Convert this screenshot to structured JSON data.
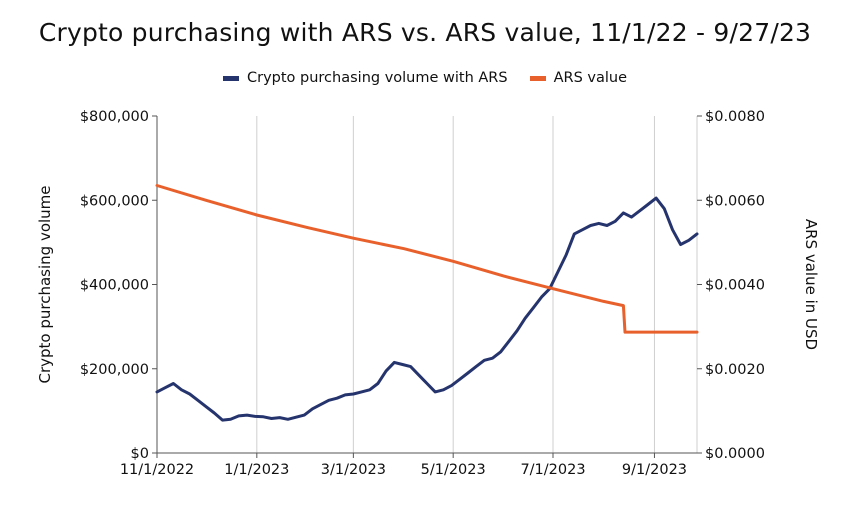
{
  "chart_data": {
    "type": "line",
    "title": "Crypto purchasing with ARS vs. ARS value, 11/1/22 - 9/27/23",
    "ylabel_left": "Crypto purchasing volume",
    "ylabel_right": "ARS value in USD",
    "ylim_left": [
      0,
      800000
    ],
    "ylim_right": [
      0,
      0.008
    ],
    "y_ticks_left": [
      "$0",
      "$200,000",
      "$400,000",
      "$600,000",
      "$800,000"
    ],
    "y_ticks_right": [
      "$0.0000",
      "$0.0020",
      "$0.0040",
      "$0.0060",
      "$0.0080"
    ],
    "x_ticks": [
      "11/1/2022",
      "1/1/2023",
      "3/1/2023",
      "5/1/2023",
      "7/1/2023",
      "9/1/2023"
    ],
    "x_range": [
      "2022-11-01",
      "2023-09-27"
    ],
    "grid": "vertical",
    "legend_position": "top",
    "series": [
      {
        "name": "Crypto purchasing volume with ARS",
        "axis": "left",
        "color": "#26346e",
        "x": [
          "2022-11-01",
          "2022-11-06",
          "2022-11-11",
          "2022-11-16",
          "2022-11-21",
          "2022-11-26",
          "2022-12-01",
          "2022-12-06",
          "2022-12-11",
          "2022-12-16",
          "2022-12-21",
          "2022-12-26",
          "2022-12-31",
          "2023-01-05",
          "2023-01-10",
          "2023-01-15",
          "2023-01-20",
          "2023-01-25",
          "2023-01-30",
          "2023-02-04",
          "2023-02-09",
          "2023-02-14",
          "2023-02-19",
          "2023-02-24",
          "2023-03-01",
          "2023-03-06",
          "2023-03-11",
          "2023-03-16",
          "2023-03-21",
          "2023-03-26",
          "2023-03-31",
          "2023-04-05",
          "2023-04-10",
          "2023-04-15",
          "2023-04-20",
          "2023-04-25",
          "2023-04-30",
          "2023-05-05",
          "2023-05-10",
          "2023-05-15",
          "2023-05-20",
          "2023-05-25",
          "2023-05-30",
          "2023-06-04",
          "2023-06-09",
          "2023-06-14",
          "2023-06-19",
          "2023-06-24",
          "2023-06-29",
          "2023-07-04",
          "2023-07-09",
          "2023-07-14",
          "2023-07-19",
          "2023-07-24",
          "2023-07-29",
          "2023-08-03",
          "2023-08-08",
          "2023-08-13",
          "2023-08-18",
          "2023-08-23",
          "2023-08-28",
          "2023-09-02",
          "2023-09-07",
          "2023-09-12",
          "2023-09-17",
          "2023-09-22",
          "2023-09-27"
        ],
        "y": [
          145000,
          155000,
          165000,
          150000,
          140000,
          125000,
          110000,
          95000,
          78000,
          80000,
          88000,
          90000,
          87000,
          86000,
          82000,
          84000,
          80000,
          85000,
          90000,
          105000,
          115000,
          125000,
          130000,
          138000,
          140000,
          145000,
          150000,
          165000,
          195000,
          215000,
          210000,
          205000,
          185000,
          165000,
          145000,
          150000,
          160000,
          175000,
          190000,
          205000,
          220000,
          225000,
          240000,
          265000,
          290000,
          320000,
          345000,
          370000,
          390000,
          430000,
          470000,
          520000,
          530000,
          540000,
          545000,
          540000,
          550000,
          570000,
          560000,
          575000,
          590000,
          605000,
          580000,
          530000,
          495000,
          505000,
          520000
        ]
      },
      {
        "name": "ARS value",
        "axis": "right",
        "color": "#e8612c",
        "x": [
          "2022-11-01",
          "2022-12-01",
          "2023-01-01",
          "2023-02-01",
          "2023-03-01",
          "2023-04-01",
          "2023-05-01",
          "2023-06-01",
          "2023-07-01",
          "2023-08-01",
          "2023-08-13",
          "2023-08-14",
          "2023-09-27"
        ],
        "y": [
          0.00635,
          0.006,
          0.00565,
          0.00535,
          0.0051,
          0.00485,
          0.00455,
          0.0042,
          0.0039,
          0.0036,
          0.0035,
          0.00287,
          0.00287
        ]
      }
    ]
  }
}
